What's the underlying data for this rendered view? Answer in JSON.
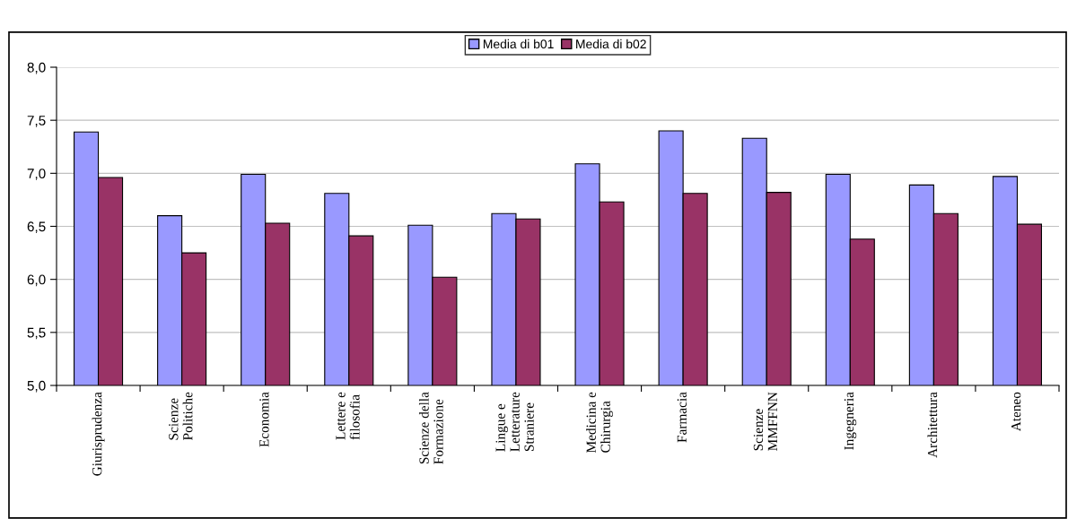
{
  "chart_data": {
    "type": "bar",
    "categories": [
      "Giurisprudenza",
      "Scienze\nPolitiche",
      "Economia",
      "Lettere e\nfilosofia",
      "Scienze della\nFormazione",
      "Lingue e\nLetterature\nStraniere",
      "Medicina e\nChirurgia",
      "Farmacia",
      "Scienze\nMMFFNN",
      "Ingegneria",
      "Architettura",
      "Ateneo"
    ],
    "series": [
      {
        "name": "Media di b01",
        "color": "#9999ff",
        "values": [
          7.39,
          6.6,
          6.99,
          6.81,
          6.51,
          6.62,
          7.09,
          7.4,
          7.33,
          6.99,
          6.89,
          6.97
        ]
      },
      {
        "name": "Media di b02",
        "color": "#993366",
        "values": [
          6.96,
          6.25,
          6.53,
          6.41,
          6.02,
          6.57,
          6.73,
          6.81,
          6.82,
          6.38,
          6.62,
          6.52
        ]
      }
    ],
    "ylim": [
      5.0,
      8.0
    ],
    "yticks": [
      {
        "value": 5.0,
        "label": "5,0"
      },
      {
        "value": 5.5,
        "label": "5,5"
      },
      {
        "value": 6.0,
        "label": "6,0"
      },
      {
        "value": 6.5,
        "label": "6,5"
      },
      {
        "value": 7.0,
        "label": "7,0"
      },
      {
        "value": 7.5,
        "label": "7,5"
      },
      {
        "value": 8.0,
        "label": "8,0"
      }
    ],
    "grid": "y",
    "legend": "top"
  }
}
